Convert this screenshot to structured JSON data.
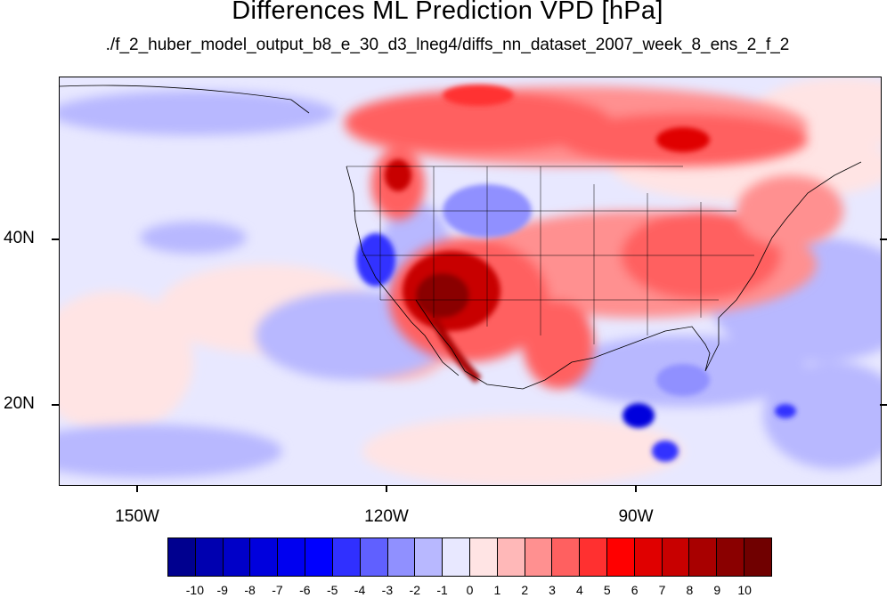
{
  "title": "Differences ML Prediction VPD [hPa]",
  "subtitle": "./f_2_huber_model_output_b8_e_30_d3_lneg4/diffs_nn_dataset_2007_week_8_ens_2_f_2",
  "lat_labels": [
    "40N",
    "20N"
  ],
  "lon_labels": [
    "150W",
    "120W",
    "90W"
  ],
  "colorbar": {
    "labels": [
      "-10",
      "-9",
      "-8",
      "-7",
      "-6",
      "-5",
      "-4",
      "-3",
      "-2",
      "-1",
      "0",
      "1",
      "2",
      "3",
      "4",
      "5",
      "6",
      "7",
      "8",
      "9",
      "10"
    ],
    "colors": [
      "#00008f",
      "#0000b0",
      "#0000c8",
      "#0000dd",
      "#0000f0",
      "#0000ff",
      "#3030ff",
      "#6060ff",
      "#9090ff",
      "#b8b8ff",
      "#e8e8ff",
      "#ffe4e4",
      "#ffb8b8",
      "#ff9090",
      "#ff6060",
      "#ff3030",
      "#ff0000",
      "#e00000",
      "#c80000",
      "#a80000",
      "#8a0000",
      "#700000"
    ]
  },
  "map": {
    "background_color": "#e8e8ff",
    "lon_range": [
      -160,
      -60
    ],
    "lat_range": [
      10,
      59
    ]
  }
}
